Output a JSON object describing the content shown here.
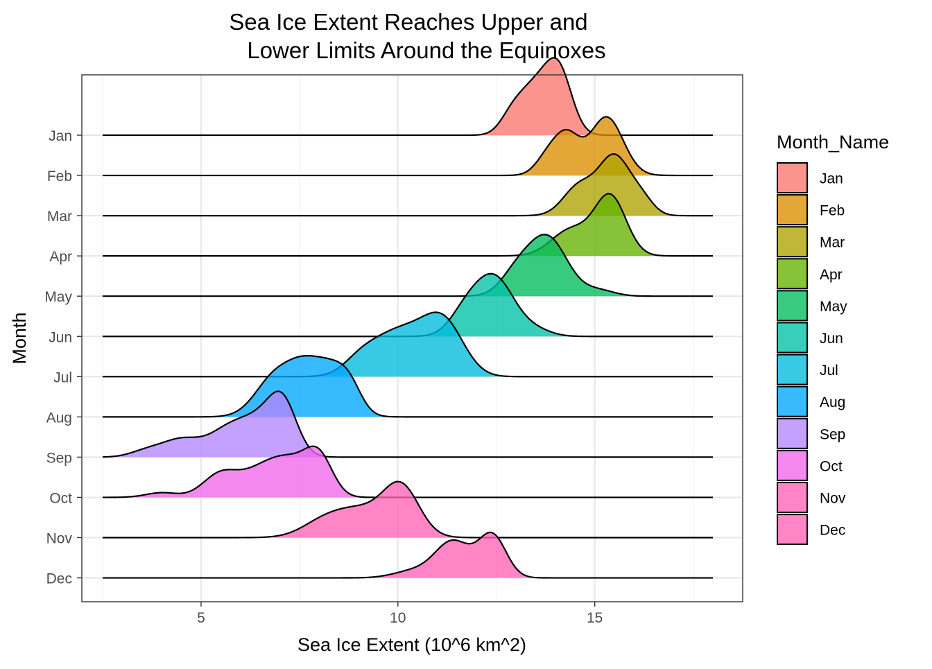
{
  "chart_data": {
    "type": "ridgeline",
    "title_lines": [
      "Sea Ice Extent Reaches Upper and",
      "Lower Limits Around the Equinoxes"
    ],
    "xlabel": "Sea Ice Extent (10^6 km^2)",
    "ylabel": "Month",
    "xlim": [
      2.5,
      18
    ],
    "x_ticks": [
      5,
      10,
      15
    ],
    "legend_title": "Month_Name",
    "legend_position": "right",
    "grid": true,
    "series": [
      {
        "name": "Jan",
        "color": "#F8766D",
        "peaks": [
          [
            13.5,
            0.8,
            0.4
          ],
          [
            14.1,
            1.0,
            0.33
          ],
          [
            12.9,
            0.3,
            0.3
          ]
        ]
      },
      {
        "name": "Feb",
        "color": "#DB8E00",
        "peaks": [
          [
            14.3,
            0.65,
            0.32
          ],
          [
            15.3,
            1.0,
            0.42
          ],
          [
            13.8,
            0.3,
            0.3
          ]
        ]
      },
      {
        "name": "Mar",
        "color": "#AEA200",
        "peaks": [
          [
            14.6,
            0.5,
            0.4
          ],
          [
            15.5,
            1.0,
            0.4
          ],
          [
            16.2,
            0.25,
            0.3
          ]
        ]
      },
      {
        "name": "Apr",
        "color": "#64B200",
        "peaks": [
          [
            14.4,
            0.45,
            0.5
          ],
          [
            15.4,
            1.0,
            0.4
          ]
        ]
      },
      {
        "name": "May",
        "color": "#00BD5C",
        "peaks": [
          [
            13.8,
            1.0,
            0.5
          ],
          [
            13.0,
            0.35,
            0.4
          ],
          [
            15.1,
            0.1,
            0.4
          ]
        ]
      },
      {
        "name": "Jun",
        "color": "#00C1A7",
        "peaks": [
          [
            12.45,
            1.0,
            0.5
          ],
          [
            11.7,
            0.35,
            0.4
          ],
          [
            13.5,
            0.1,
            0.4
          ]
        ]
      },
      {
        "name": "Jul",
        "color": "#00BADE",
        "peaks": [
          [
            9.6,
            0.45,
            0.6
          ],
          [
            10.4,
            0.55,
            0.6
          ],
          [
            11.2,
            0.8,
            0.5
          ],
          [
            9.0,
            0.15,
            0.4
          ]
        ]
      },
      {
        "name": "Aug",
        "color": "#00A6FF",
        "peaks": [
          [
            6.9,
            0.7,
            0.5
          ],
          [
            7.6,
            0.55,
            0.4
          ],
          [
            8.3,
            0.78,
            0.45
          ],
          [
            8.8,
            0.3,
            0.3
          ]
        ]
      },
      {
        "name": "Sep",
        "color": "#B385FF",
        "peaks": [
          [
            4.5,
            0.3,
            0.5
          ],
          [
            5.7,
            0.45,
            0.5
          ],
          [
            6.6,
            0.6,
            0.5
          ],
          [
            7.1,
            0.7,
            0.35
          ],
          [
            3.6,
            0.1,
            0.4
          ]
        ]
      },
      {
        "name": "Oct",
        "color": "#EF67EB",
        "peaks": [
          [
            4.0,
            0.08,
            0.4
          ],
          [
            5.5,
            0.4,
            0.45
          ],
          [
            6.5,
            0.4,
            0.5
          ],
          [
            7.3,
            0.55,
            0.5
          ],
          [
            8.0,
            0.62,
            0.35
          ]
        ]
      },
      {
        "name": "Nov",
        "color": "#FF63B6",
        "peaks": [
          [
            9.0,
            0.5,
            0.8
          ],
          [
            10.1,
            0.75,
            0.45
          ],
          [
            8.0,
            0.12,
            0.5
          ]
        ]
      },
      {
        "name": "Dec",
        "color": "#FF63B6",
        "peaks": [
          [
            11.4,
            0.62,
            0.45
          ],
          [
            12.4,
            0.72,
            0.35
          ],
          [
            10.4,
            0.12,
            0.5
          ]
        ]
      }
    ]
  }
}
